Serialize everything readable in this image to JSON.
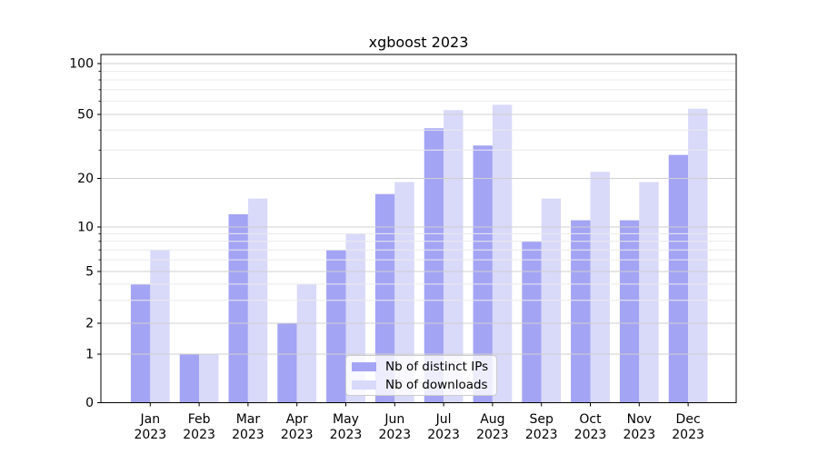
{
  "title": "xgboost 2023",
  "chart_data": {
    "type": "bar",
    "title": "xgboost 2023",
    "categories": [
      "Jan",
      "Feb",
      "Mar",
      "Apr",
      "May",
      "Jun",
      "Jul",
      "Aug",
      "Sep",
      "Oct",
      "Nov",
      "Dec"
    ],
    "category_year": "2023",
    "series": [
      {
        "name": "Nb of distinct IPs",
        "color": "#a4a4f5",
        "values": [
          4,
          1,
          12,
          2,
          7,
          16,
          41,
          32,
          8,
          11,
          11,
          28
        ]
      },
      {
        "name": "Nb of downloads",
        "color": "#d9d9f9",
        "values": [
          7,
          1,
          15,
          4,
          9,
          19,
          53,
          57,
          15,
          22,
          19,
          54
        ]
      }
    ],
    "xlabel": "",
    "ylabel": "",
    "y_axis": {
      "scale": "symlog",
      "major_ticks": [
        100,
        50,
        20,
        10,
        5,
        2,
        1,
        0
      ],
      "minor_gridlines": [
        3,
        4,
        6,
        7,
        8,
        9,
        30,
        40,
        60,
        70,
        80,
        90
      ],
      "ylim": [
        0,
        110
      ]
    },
    "grid": true,
    "legend": {
      "position": "lower center"
    }
  },
  "colors": {
    "bar_dark": "#a4a4f5",
    "bar_light": "#d9d9f9",
    "grid_major": "#d0d0d0",
    "grid_minor": "#ebebeb",
    "axis": "#000000",
    "text": "#000000",
    "legend_border": "#cccccc"
  }
}
